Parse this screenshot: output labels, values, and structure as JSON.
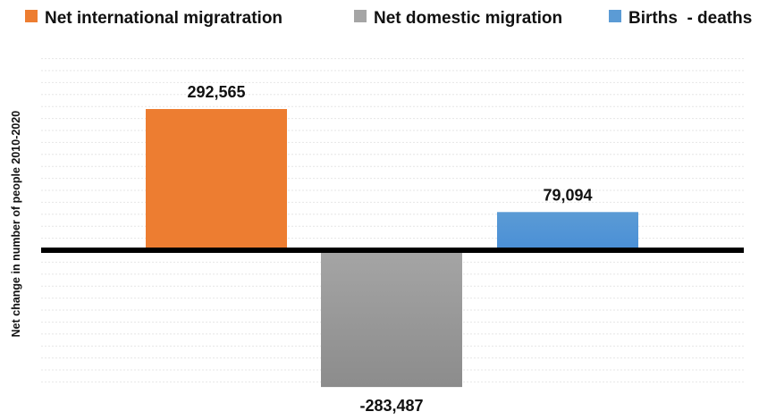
{
  "chart_data": {
    "type": "bar",
    "categories": [
      "Net international migratration",
      "Net domestic migration",
      "Births  - deaths"
    ],
    "values": [
      292565,
      -283487,
      79094
    ],
    "value_labels": [
      "292,565",
      "-283,487",
      "79,094"
    ],
    "title": "",
    "xlabel": "",
    "ylabel": "Net change in number of people 2010-2020",
    "ylim": [
      -290000,
      410000
    ],
    "grid": true,
    "legend": "top",
    "colors": {
      "bars": [
        "#ed7d31",
        "#a5a5a5",
        "#5b9bd5"
      ],
      "bar_gradient_ends": [
        "#ed7d31",
        "#8c8c8c",
        "#4a8fd6"
      ],
      "zero_line": "#000000"
    }
  }
}
